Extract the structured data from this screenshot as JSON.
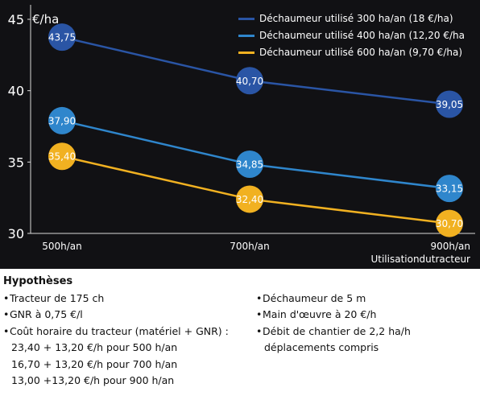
{
  "chart_data": {
    "type": "line",
    "unit_label": "€/ha",
    "categories": [
      "500h/an",
      "700h/an",
      "900h/an"
    ],
    "xlabel": "Utilisationdutracteur",
    "ylim": [
      30,
      45
    ],
    "yticks": [
      30,
      35,
      40,
      45
    ],
    "grid": false,
    "legend_position": "top-right",
    "series": [
      {
        "name": "Déchaumeur utilisé 300 ha/an (18 €/ha)",
        "color": "#2a55a5",
        "values": [
          43.75,
          40.7,
          39.05
        ],
        "labels": [
          "43,75",
          "40,70",
          "39,05"
        ]
      },
      {
        "name": "Déchaumeur utilisé 400 ha/an (12,20 €/ha",
        "color": "#2f86cc",
        "values": [
          37.9,
          34.85,
          33.15
        ],
        "labels": [
          "37,90",
          "34,85",
          "33,15"
        ]
      },
      {
        "name": "Déchaumeur utilisé 600 ha/an (9,70 €/ha)",
        "color": "#f1b121",
        "values": [
          35.4,
          32.4,
          30.7
        ],
        "labels": [
          "35,40",
          "32,40",
          "30,70"
        ]
      }
    ]
  },
  "hypotheses": {
    "title": "Hypothèses",
    "left": [
      {
        "text": "Tracteur de 175 ch",
        "bullet": true
      },
      {
        "text": "GNR à 0,75 €/l",
        "bullet": true
      },
      {
        "text": "Coût horaire du tracteur (matériel + GNR) :",
        "bullet": true
      },
      {
        "text": "23,40  +  13,20 €/h pour 500 h/an",
        "bullet": false
      },
      {
        "text": "16,70  +  13,20 €/h pour 700 h/an",
        "bullet": false
      },
      {
        "text": "13,00  +13,20 €/h pour 900 h/an",
        "bullet": false
      }
    ],
    "right": [
      {
        "text": "Déchaumeur de 5 m",
        "bullet": true
      },
      {
        "text": "Main d'œuvre à 20 €/h",
        "bullet": true
      },
      {
        "text": "Débit de chantier de 2,2 ha/h",
        "bullet": true
      },
      {
        "text": "déplacements compris",
        "bullet": false
      }
    ]
  }
}
